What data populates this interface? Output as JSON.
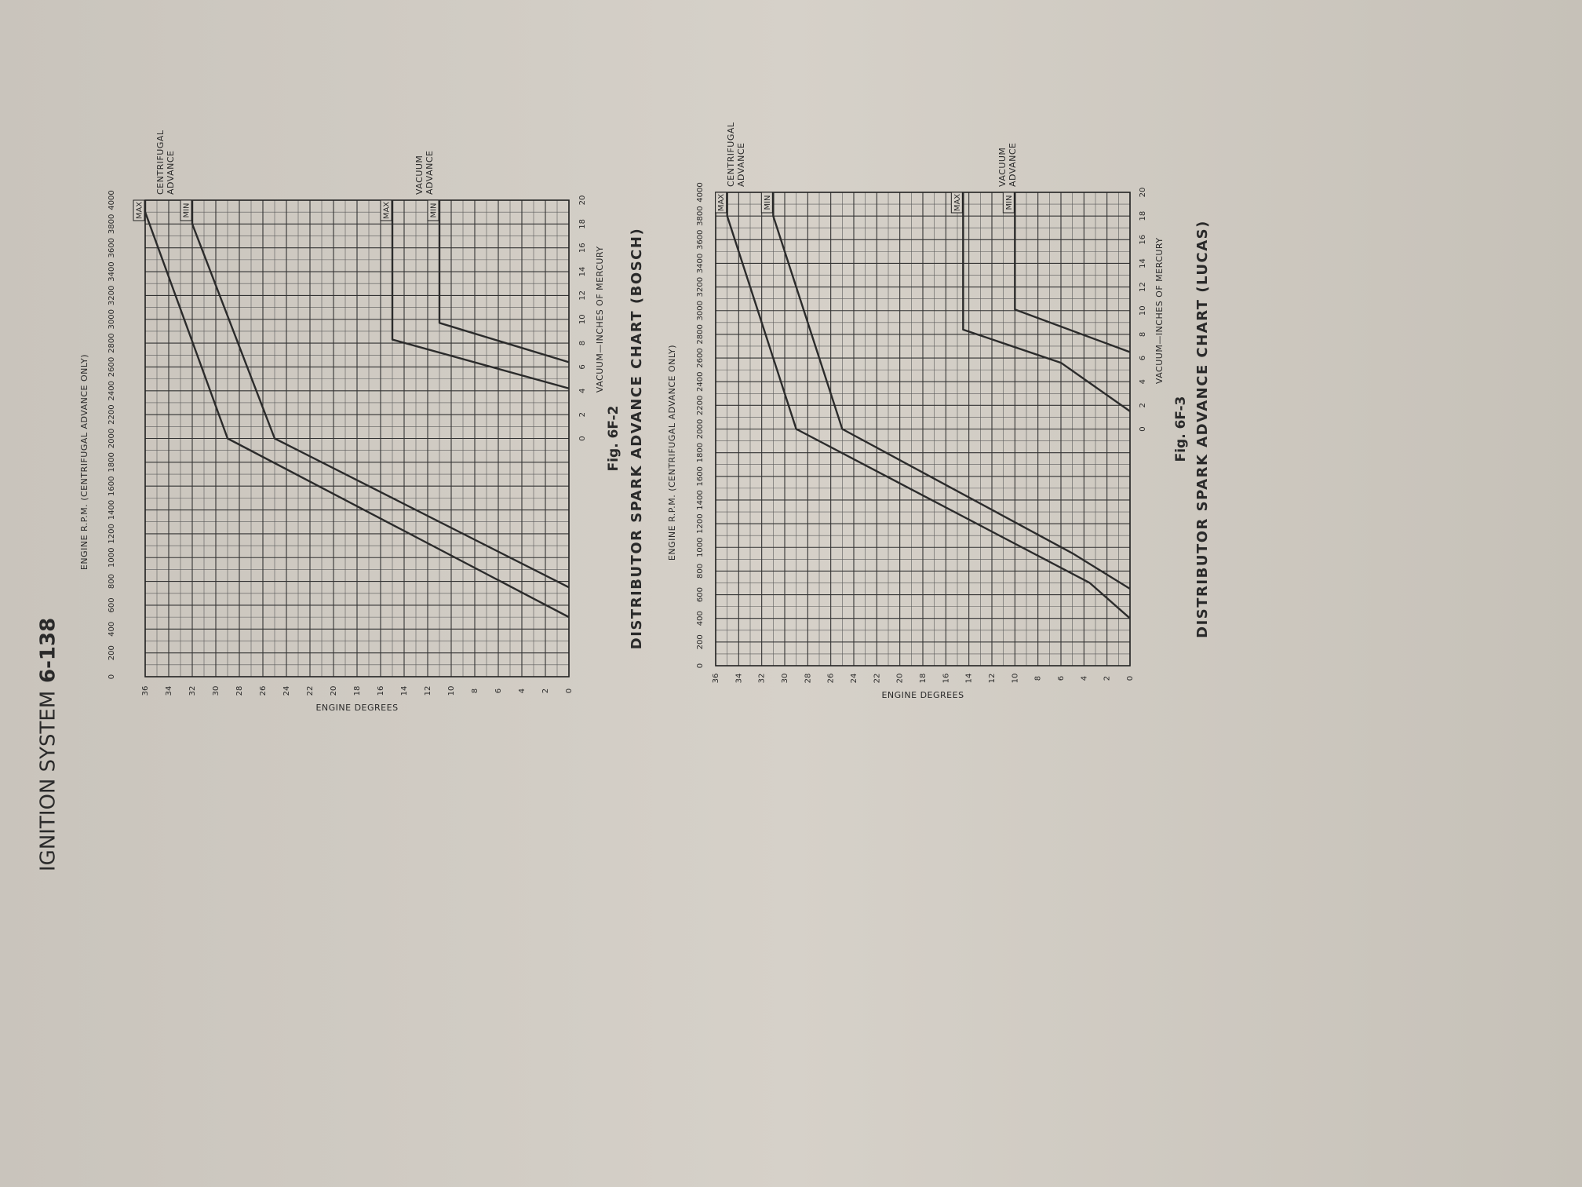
{
  "header": {
    "section": "IGNITION SYSTEM",
    "page": "6-138"
  },
  "chart_data": [
    {
      "type": "line",
      "figure": "Fig. 6F-2",
      "title": "DISTRIBUTOR SPARK ADVANCE CHART (BOSCH)",
      "xlabel": "ENGINE R.P.M. (CENTRIFUGAL ADVANCE ONLY)",
      "ylabel": "ENGINE DEGREES",
      "x2label": "VACUUM—INCHES OF MERCURY",
      "xlim": [
        0,
        4000
      ],
      "xticks": [
        0,
        200,
        400,
        600,
        800,
        1000,
        1200,
        1400,
        1600,
        1800,
        2000,
        2200,
        2400,
        2600,
        2800,
        3000,
        3200,
        3400,
        3600,
        3800,
        4000
      ],
      "ylim": [
        0,
        36
      ],
      "yticks": [
        0,
        2,
        4,
        6,
        8,
        10,
        12,
        14,
        16,
        18,
        20,
        22,
        24,
        26,
        28,
        30,
        32,
        34,
        36
      ],
      "x2lim": [
        0,
        20
      ],
      "x2ticks": [
        0,
        2,
        4,
        6,
        8,
        10,
        12,
        14,
        16,
        18,
        20
      ],
      "grid": true,
      "annotations": [
        [
          "CENTRIFUGAL",
          "ADVANCE"
        ],
        [
          "VACUUM",
          "ADVANCE"
        ]
      ],
      "series": [
        {
          "name": "MAX",
          "color": "#2b2b2b",
          "x": [
            500,
            2000,
            3900,
            4000
          ],
          "values": [
            0,
            29,
            36,
            36
          ]
        },
        {
          "name": "MIN",
          "color": "#2b2b2b",
          "x": [
            750,
            2000,
            3800,
            4000
          ],
          "values": [
            0,
            25,
            32,
            32
          ]
        },
        {
          "name": "MAX",
          "color": "#2b2b2b",
          "axis": "x2",
          "x": [
            4.2,
            8.3,
            20
          ],
          "values": [
            0,
            15,
            15
          ]
        },
        {
          "name": "MIN",
          "color": "#2b2b2b",
          "axis": "x2",
          "x": [
            6.4,
            9.7,
            20
          ],
          "values": [
            0,
            11,
            11
          ]
        }
      ]
    },
    {
      "type": "line",
      "figure": "Fig. 6F-3",
      "title": "DISTRIBUTOR SPARK ADVANCE CHART (LUCAS)",
      "xlabel": "ENGINE R.P.M. (CENTRIFUGAL ADVANCE ONLY)",
      "ylabel": "ENGINE DEGREES",
      "x2label": "VACUUM—INCHES OF MERCURY",
      "xlim": [
        0,
        4000
      ],
      "xticks": [
        0,
        200,
        400,
        600,
        800,
        1000,
        1200,
        1400,
        1600,
        1800,
        2000,
        2200,
        2400,
        2600,
        2800,
        3000,
        3200,
        3400,
        3600,
        3800,
        4000
      ],
      "ylim": [
        0,
        36
      ],
      "yticks": [
        0,
        2,
        4,
        6,
        8,
        10,
        12,
        14,
        16,
        18,
        20,
        22,
        24,
        26,
        28,
        30,
        32,
        34,
        36
      ],
      "x2lim": [
        0,
        20
      ],
      "x2ticks": [
        0,
        2,
        4,
        6,
        8,
        10,
        12,
        14,
        16,
        18,
        20
      ],
      "grid": true,
      "annotations": [
        [
          "CENTRIFUGAL",
          "ADVANCE"
        ],
        [
          "VACUUM",
          "ADVANCE"
        ]
      ],
      "series": [
        {
          "name": "MAX",
          "color": "#2b2b2b",
          "x": [
            400,
            700,
            2000,
            3800,
            4000
          ],
          "values": [
            0,
            3.5,
            29,
            35,
            35
          ]
        },
        {
          "name": "MIN",
          "color": "#2b2b2b",
          "x": [
            650,
            950,
            2000,
            3800,
            4000
          ],
          "values": [
            0,
            5,
            25,
            31,
            31
          ]
        },
        {
          "name": "MAX",
          "color": "#2b2b2b",
          "axis": "x2",
          "x": [
            1.5,
            5.6,
            8.4,
            20
          ],
          "values": [
            0,
            6,
            14.5,
            14.5
          ]
        },
        {
          "name": "MIN",
          "color": "#2b2b2b",
          "axis": "x2",
          "x": [
            6.5,
            10.1,
            20
          ],
          "values": [
            0,
            10,
            10
          ]
        }
      ]
    }
  ]
}
